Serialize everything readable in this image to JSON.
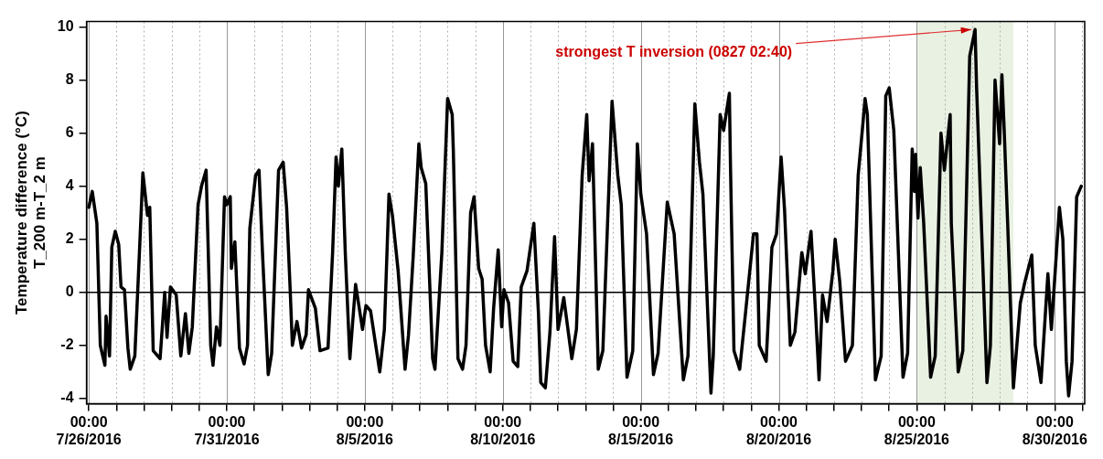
{
  "chart_data": {
    "type": "line",
    "ylabel": "Temperature difference (°C)\nT_200 m-T_2 m",
    "x": [
      "2016-07-26T00:00",
      "2016-07-26T03:00",
      "2016-07-26T07:00",
      "2016-07-26T10:00",
      "2016-07-26T14:00",
      "2016-07-26T15:00",
      "2016-07-26T18:00",
      "2016-07-26T20:00",
      "2016-07-26T23:00",
      "2016-07-27T02:00",
      "2016-07-27T04:00",
      "2016-07-27T07:00",
      "2016-07-27T10:00",
      "2016-07-27T12:00",
      "2016-07-27T16:00",
      "2016-07-27T20:00",
      "2016-07-27T23:00",
      "2016-07-28T03:00",
      "2016-07-28T05:00",
      "2016-07-28T08:00",
      "2016-07-28T14:00",
      "2016-07-28T18:00",
      "2016-07-28T20:00",
      "2016-07-28T23:00",
      "2016-07-29T04:00",
      "2016-07-29T08:00",
      "2016-07-29T12:00",
      "2016-07-29T15:00",
      "2016-07-29T18:00",
      "2016-07-29T23:00",
      "2016-07-30T02:00",
      "2016-07-30T06:00",
      "2016-07-30T10:00",
      "2016-07-30T12:00",
      "2016-07-30T15:00",
      "2016-07-30T18:00",
      "2016-07-30T22:00",
      "2016-07-31T00:00",
      "2016-07-31T03:00",
      "2016-07-31T04:00",
      "2016-07-31T07:00",
      "2016-07-31T11:00",
      "2016-07-31T15:00",
      "2016-07-31T18:00",
      "2016-07-31T20:00",
      "2016-08-01T01:00",
      "2016-08-01T04:00",
      "2016-08-01T07:00",
      "2016-08-01T12:00",
      "2016-08-01T15:00",
      "2016-08-01T21:00",
      "2016-08-02T01:00",
      "2016-08-02T04:00",
      "2016-08-02T07:00",
      "2016-08-02T09:00",
      "2016-08-02T13:00",
      "2016-08-02T17:00",
      "2016-08-02T21:00",
      "2016-08-02T23:00",
      "2016-08-03T05:00",
      "2016-08-03T09:00",
      "2016-08-03T16:00",
      "2016-08-03T20:00",
      "2016-08-03T23:00",
      "2016-08-04T01:00",
      "2016-08-04T04:00",
      "2016-08-04T07:00",
      "2016-08-04T11:00",
      "2016-08-04T16:00",
      "2016-08-04T22:00",
      "2016-08-05T01:00",
      "2016-08-05T05:00",
      "2016-08-05T13:00",
      "2016-08-05T17:00",
      "2016-08-05T21:00",
      "2016-08-06T00:00",
      "2016-08-06T05:00",
      "2016-08-06T11:00",
      "2016-08-06T14:00",
      "2016-08-06T18:00",
      "2016-08-06T23:00",
      "2016-08-07T01:00",
      "2016-08-07T05:00",
      "2016-08-07T11:00",
      "2016-08-07T13:00",
      "2016-08-07T19:00",
      "2016-08-08T00:00",
      "2016-08-08T04:00",
      "2016-08-08T05:00",
      "2016-08-08T09:00",
      "2016-08-08T13:00",
      "2016-08-08T16:00",
      "2016-08-08T20:00",
      "2016-08-08T23:00",
      "2016-08-09T03:00",
      "2016-08-09T06:00",
      "2016-08-09T09:00",
      "2016-08-09T13:00",
      "2016-08-09T16:00",
      "2016-08-09T20:00",
      "2016-08-09T23:00",
      "2016-08-10T01:00",
      "2016-08-10T05:00",
      "2016-08-10T09:00",
      "2016-08-10T13:00",
      "2016-08-10T16:00",
      "2016-08-10T21:00",
      "2016-08-11T03:00",
      "2016-08-11T07:00",
      "2016-08-11T09:00",
      "2016-08-11T13:00",
      "2016-08-11T17:00",
      "2016-08-11T21:00",
      "2016-08-12T00:00",
      "2016-08-12T05:00",
      "2016-08-12T12:00",
      "2016-08-12T16:00",
      "2016-08-12T21:00",
      "2016-08-13T01:00",
      "2016-08-13T03:00",
      "2016-08-13T06:00",
      "2016-08-13T11:00",
      "2016-08-13T15:00",
      "2016-08-13T23:00",
      "2016-08-14T04:00",
      "2016-08-14T07:00",
      "2016-08-14T12:00",
      "2016-08-14T17:00",
      "2016-08-14T21:00",
      "2016-08-15T00:00",
      "2016-08-15T05:00",
      "2016-08-15T11:00",
      "2016-08-15T15:00",
      "2016-08-15T23:00",
      "2016-08-16T05:00",
      "2016-08-16T13:00",
      "2016-08-16T17:00",
      "2016-08-16T23:00",
      "2016-08-17T03:00",
      "2016-08-17T06:00",
      "2016-08-17T13:00",
      "2016-08-17T15:00",
      "2016-08-17T21:00",
      "2016-08-18T00:00",
      "2016-08-18T05:00",
      "2016-08-18T06:00",
      "2016-08-18T09:00",
      "2016-08-18T14:00",
      "2016-08-18T19:00",
      "2016-08-19T02:00",
      "2016-08-19T05:00",
      "2016-08-19T07:00",
      "2016-08-19T13:00",
      "2016-08-19T18:00",
      "2016-08-19T22:00",
      "2016-08-20T02:00",
      "2016-08-20T05:00",
      "2016-08-20T10:00",
      "2016-08-20T14:00",
      "2016-08-20T20:00",
      "2016-08-20T23:00",
      "2016-08-21T04:00",
      "2016-08-21T08:00",
      "2016-08-21T11:00",
      "2016-08-21T14:00",
      "2016-08-21T18:00",
      "2016-08-21T23:00",
      "2016-08-22T01:00",
      "2016-08-22T05:00",
      "2016-08-22T10:00",
      "2016-08-22T16:00",
      "2016-08-22T21:00",
      "2016-08-23T01:00",
      "2016-08-23T03:00",
      "2016-08-23T05:00",
      "2016-08-23T12:00",
      "2016-08-23T17:00",
      "2016-08-23T21:00",
      "2016-08-24T00:00",
      "2016-08-24T04:00",
      "2016-08-24T06:00",
      "2016-08-24T12:00",
      "2016-08-24T16:00",
      "2016-08-24T20:00",
      "2016-08-24T22:00",
      "2016-08-24T23:00",
      "2016-08-25T01:00",
      "2016-08-25T03:00",
      "2016-08-25T06:00",
      "2016-08-25T12:00",
      "2016-08-25T16:00",
      "2016-08-25T21:00",
      "2016-08-26T00:00",
      "2016-08-26T05:00",
      "2016-08-26T06:00",
      "2016-08-26T12:00",
      "2016-08-26T16:00",
      "2016-08-26T22:00",
      "2016-08-27T02:40",
      "2016-08-27T04:00",
      "2016-08-27T13:00",
      "2016-08-27T16:00",
      "2016-08-27T20:00",
      "2016-08-28T00:00",
      "2016-08-28T02:00",
      "2016-08-28T04:00",
      "2016-08-28T07:00",
      "2016-08-28T12:00",
      "2016-08-28T18:00",
      "2016-08-28T22:00",
      "2016-08-29T04:00",
      "2016-08-29T07:00",
      "2016-08-29T12:00",
      "2016-08-29T18:00",
      "2016-08-29T21:00",
      "2016-08-30T04:00",
      "2016-08-30T07:00",
      "2016-08-30T10:00",
      "2016-08-30T12:00",
      "2016-08-30T15:00",
      "2016-08-30T19:00",
      "2016-08-30T23:00"
    ],
    "series": [
      {
        "color": "#000000",
        "values": [
          3.2,
          3.8,
          2.6,
          -2.0,
          -2.75,
          -0.9,
          -2.4,
          1.7,
          2.3,
          1.8,
          0.2,
          0.1,
          -2.1,
          -2.9,
          -2.4,
          1.5,
          4.5,
          2.9,
          3.2,
          -2.2,
          -2.5,
          0.0,
          -1.7,
          0.2,
          -0.1,
          -2.4,
          -0.8,
          -2.3,
          -1.3,
          3.3,
          4.0,
          4.6,
          -2.0,
          -2.75,
          -1.3,
          -2.0,
          3.6,
          3.3,
          3.6,
          0.9,
          1.9,
          -2.1,
          -2.7,
          -2.0,
          2.4,
          4.4,
          4.6,
          1.5,
          -3.1,
          -2.3,
          4.6,
          4.9,
          3.2,
          0.2,
          -2.0,
          -1.1,
          -2.1,
          -1.6,
          0.1,
          -0.6,
          -2.2,
          -2.1,
          1.5,
          5.1,
          4.0,
          5.4,
          1.5,
          -2.5,
          0.3,
          -1.4,
          -0.5,
          -0.7,
          -3.0,
          -1.4,
          3.7,
          2.9,
          0.8,
          -2.9,
          -1.6,
          1.3,
          5.6,
          4.7,
          4.1,
          -2.5,
          -2.9,
          1.5,
          7.3,
          6.7,
          5.3,
          -2.5,
          -2.9,
          -2.0,
          3.0,
          3.6,
          0.9,
          0.5,
          -2.0,
          -3.0,
          -0.6,
          1.6,
          -1.3,
          0.1,
          -0.4,
          -2.6,
          -2.8,
          0.2,
          0.8,
          2.6,
          -0.8,
          -3.4,
          -3.6,
          -1.5,
          2.1,
          -1.4,
          -0.2,
          -2.5,
          -1.4,
          4.4,
          6.7,
          4.2,
          5.6,
          -2.9,
          -2.2,
          7.2,
          4.4,
          3.3,
          -3.2,
          -2.2,
          5.6,
          3.7,
          2.2,
          -3.1,
          -2.3,
          3.4,
          2.2,
          -3.3,
          -2.4,
          7.1,
          4.9,
          3.7,
          -3.8,
          -2.4,
          6.7,
          6.1,
          7.5,
          4.7,
          -2.2,
          -2.9,
          -0.8,
          2.2,
          2.2,
          -2.0,
          -2.6,
          1.7,
          2.2,
          5.1,
          3.1,
          -2.0,
          -1.5,
          1.5,
          0.7,
          2.3,
          -0.8,
          -3.3,
          -0.1,
          -1.1,
          0.8,
          2.0,
          0.4,
          -2.6,
          -2.0,
          4.4,
          6.3,
          7.3,
          6.7,
          -3.3,
          -2.4,
          7.4,
          7.7,
          6.1,
          3.8,
          -3.2,
          -2.3,
          5.4,
          3.8,
          5.2,
          2.8,
          4.7,
          2.6,
          -3.2,
          -2.4,
          6.0,
          4.6,
          6.7,
          2.6,
          -3.0,
          -2.2,
          8.9,
          9.9,
          7.7,
          -3.4,
          -2.0,
          8.0,
          5.6,
          8.2,
          6.1,
          2.6,
          -3.6,
          -0.4,
          0.4,
          1.4,
          -2.0,
          -3.4,
          0.7,
          -1.4,
          3.2,
          2.0,
          -2.6,
          -3.9,
          -2.6,
          3.6,
          4.0
        ]
      }
    ],
    "xlim": [
      "2016-07-25T22:00",
      "2016-08-31T02:00"
    ],
    "xticks": [
      {
        "value": "2016-07-26T00:00",
        "label": "00:00\n7/26/2016"
      },
      {
        "value": "2016-07-27T00:00",
        "label": null
      },
      {
        "value": "2016-07-28T00:00",
        "label": null
      },
      {
        "value": "2016-07-29T00:00",
        "label": null
      },
      {
        "value": "2016-07-30T00:00",
        "label": null
      },
      {
        "value": "2016-07-31T00:00",
        "label": "00:00\n7/31/2016"
      },
      {
        "value": "2016-08-01T00:00",
        "label": null
      },
      {
        "value": "2016-08-02T00:00",
        "label": null
      },
      {
        "value": "2016-08-03T00:00",
        "label": null
      },
      {
        "value": "2016-08-04T00:00",
        "label": null
      },
      {
        "value": "2016-08-05T00:00",
        "label": "00:00\n8/5/2016"
      },
      {
        "value": "2016-08-06T00:00",
        "label": null
      },
      {
        "value": "2016-08-07T00:00",
        "label": null
      },
      {
        "value": "2016-08-08T00:00",
        "label": null
      },
      {
        "value": "2016-08-09T00:00",
        "label": null
      },
      {
        "value": "2016-08-10T00:00",
        "label": "00:00\n8/10/2016"
      },
      {
        "value": "2016-08-11T00:00",
        "label": null
      },
      {
        "value": "2016-08-12T00:00",
        "label": null
      },
      {
        "value": "2016-08-13T00:00",
        "label": null
      },
      {
        "value": "2016-08-14T00:00",
        "label": null
      },
      {
        "value": "2016-08-15T00:00",
        "label": "00:00\n8/15/2016"
      },
      {
        "value": "2016-08-16T00:00",
        "label": null
      },
      {
        "value": "2016-08-17T00:00",
        "label": null
      },
      {
        "value": "2016-08-18T00:00",
        "label": null
      },
      {
        "value": "2016-08-19T00:00",
        "label": null
      },
      {
        "value": "2016-08-20T00:00",
        "label": "00:00\n8/20/2016"
      },
      {
        "value": "2016-08-21T00:00",
        "label": null
      },
      {
        "value": "2016-08-22T00:00",
        "label": null
      },
      {
        "value": "2016-08-23T00:00",
        "label": null
      },
      {
        "value": "2016-08-24T00:00",
        "label": null
      },
      {
        "value": "2016-08-25T00:00",
        "label": "00:00\n8/25/2016"
      },
      {
        "value": "2016-08-26T00:00",
        "label": null
      },
      {
        "value": "2016-08-27T00:00",
        "label": null
      },
      {
        "value": "2016-08-28T00:00",
        "label": null
      },
      {
        "value": "2016-08-29T00:00",
        "label": null
      },
      {
        "value": "2016-08-30T00:00",
        "label": "00:00\n8/30/2016"
      },
      {
        "value": "2016-08-31T00:00",
        "label": null
      }
    ],
    "ylim": [
      -4.2,
      10.2
    ],
    "yticks": [
      -4,
      -2,
      0,
      2,
      4,
      6,
      8,
      10
    ],
    "grid": "x",
    "ref_lines": [
      {
        "axis": "y",
        "value": 0,
        "color": "#000000"
      }
    ],
    "bands": [
      {
        "axis": "x",
        "from": "2016-08-25T00:00",
        "to": "2016-08-28T12:00",
        "color": "#e9f1e3"
      }
    ],
    "annotations": [
      {
        "text": "strongest T inversion (0827 02:40)",
        "x": "2016-08-27T02:40",
        "y": 9.9
      }
    ]
  }
}
